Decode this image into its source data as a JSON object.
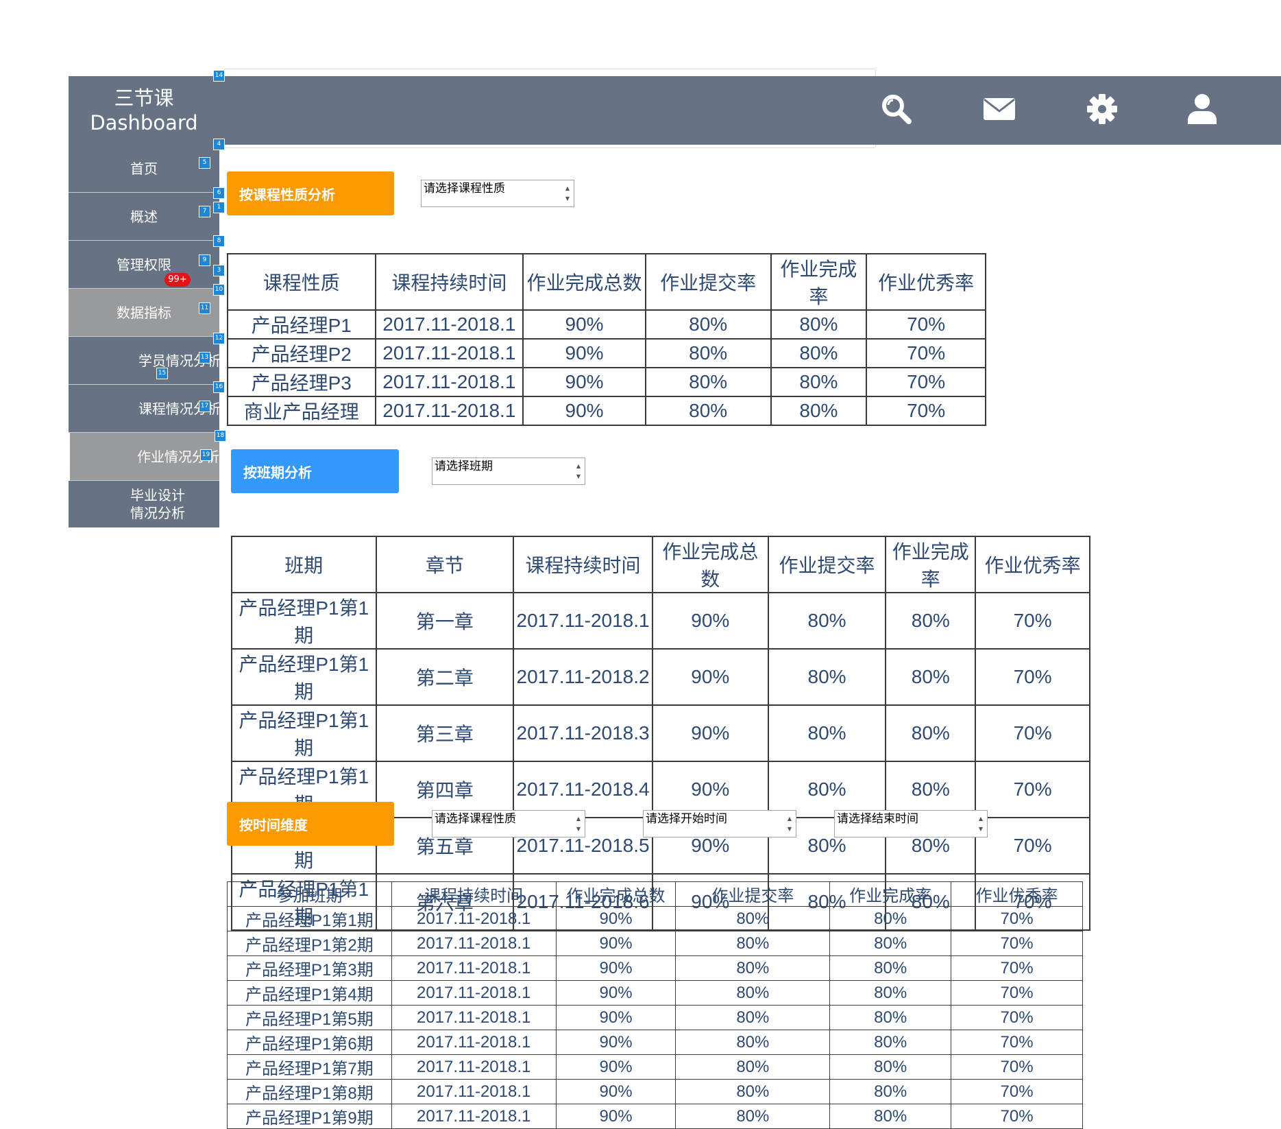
{
  "header": {
    "brand_line1": "三节课",
    "brand_line2": "Dashboard",
    "icons": [
      "search-icon",
      "mail-icon",
      "gear-icon",
      "user-icon"
    ]
  },
  "sidebar": {
    "items": [
      {
        "label": "首页"
      },
      {
        "label": "概述"
      },
      {
        "label": "管理权限",
        "badge": "99+"
      },
      {
        "label": "数据指标"
      },
      {
        "label": "学员情况分析"
      },
      {
        "label": "课程情况分析"
      },
      {
        "label": "作业情况分析"
      },
      {
        "label_line1": "毕业设计",
        "label_line2": "情况分析"
      }
    ]
  },
  "markers": [
    "14",
    "4",
    "5",
    "6",
    "1",
    "7",
    "8",
    "9",
    "3",
    "10",
    "11",
    "12",
    "13",
    "15",
    "16",
    "17",
    "18",
    "19"
  ],
  "section1": {
    "button": "按课程性质分析",
    "select_placeholder": "请选择课程性质",
    "table": {
      "headers": [
        "课程性质",
        "课程持续时间",
        "作业完成总数",
        "作业提交率",
        "作业完成率",
        "作业优秀率"
      ],
      "rows": [
        [
          "产品经理P1",
          "2017.11-2018.1",
          "90%",
          "80%",
          "80%",
          "70%"
        ],
        [
          "产品经理P2",
          "2017.11-2018.1",
          "90%",
          "80%",
          "80%",
          "70%"
        ],
        [
          "产品经理P3",
          "2017.11-2018.1",
          "90%",
          "80%",
          "80%",
          "70%"
        ],
        [
          "商业产品经理",
          "2017.11-2018.1",
          "90%",
          "80%",
          "80%",
          "70%"
        ]
      ]
    }
  },
  "section2": {
    "button": "按班期分析",
    "select_placeholder": "请选择班期",
    "table": {
      "headers": [
        "班期",
        "章节",
        "课程持续时间",
        "作业完成总数",
        "作业提交率",
        "作业完成率",
        "作业优秀率"
      ],
      "rows": [
        [
          "产品经理P1第1期",
          "第一章",
          "2017.11-2018.1",
          "90%",
          "80%",
          "80%",
          "70%"
        ],
        [
          "产品经理P1第1期",
          "第二章",
          "2017.11-2018.2",
          "90%",
          "80%",
          "80%",
          "70%"
        ],
        [
          "产品经理P1第1期",
          "第三章",
          "2017.11-2018.3",
          "90%",
          "80%",
          "80%",
          "70%"
        ],
        [
          "产品经理P1第1期",
          "第四章",
          "2017.11-2018.4",
          "90%",
          "80%",
          "80%",
          "70%"
        ],
        [
          "产品经理P1第1期",
          "第五章",
          "2017.11-2018.5",
          "90%",
          "80%",
          "80%",
          "70%"
        ],
        [
          "产品经理P1第1期",
          "第六章",
          "2017.11-2018.6",
          "90%",
          "80%",
          "80%",
          "70%"
        ]
      ]
    }
  },
  "section3": {
    "button": "按时间维度",
    "select_course": "请选择课程性质",
    "select_start": "请选择开始时间",
    "select_end": "请选择结束时间",
    "table": {
      "headers": [
        "参加班期",
        "课程持续时间",
        "作业完成总数",
        "作业提交率",
        "作业完成率",
        "作业优秀率"
      ],
      "rows": [
        [
          "产品经理P1第1期",
          "2017.11-2018.1",
          "90%",
          "80%",
          "80%",
          "70%"
        ],
        [
          "产品经理P1第2期",
          "2017.11-2018.1",
          "90%",
          "80%",
          "80%",
          "70%"
        ],
        [
          "产品经理P1第3期",
          "2017.11-2018.1",
          "90%",
          "80%",
          "80%",
          "70%"
        ],
        [
          "产品经理P1第4期",
          "2017.11-2018.1",
          "90%",
          "80%",
          "80%",
          "70%"
        ],
        [
          "产品经理P1第5期",
          "2017.11-2018.1",
          "90%",
          "80%",
          "80%",
          "70%"
        ],
        [
          "产品经理P1第6期",
          "2017.11-2018.1",
          "90%",
          "80%",
          "80%",
          "70%"
        ],
        [
          "产品经理P1第7期",
          "2017.11-2018.1",
          "90%",
          "80%",
          "80%",
          "70%"
        ],
        [
          "产品经理P1第8期",
          "2017.11-2018.1",
          "90%",
          "80%",
          "80%",
          "70%"
        ],
        [
          "产品经理P1第9期",
          "2017.11-2018.1",
          "90%",
          "80%",
          "80%",
          "70%"
        ]
      ]
    }
  },
  "colors": {
    "header_bg": "#677384",
    "nav_muted": "#999a9c",
    "orange": "#fb9900",
    "blue": "#3399ff",
    "badge_red": "#e01515",
    "table_text": "#2e4a72",
    "marker_blue": "#1f86d6"
  }
}
